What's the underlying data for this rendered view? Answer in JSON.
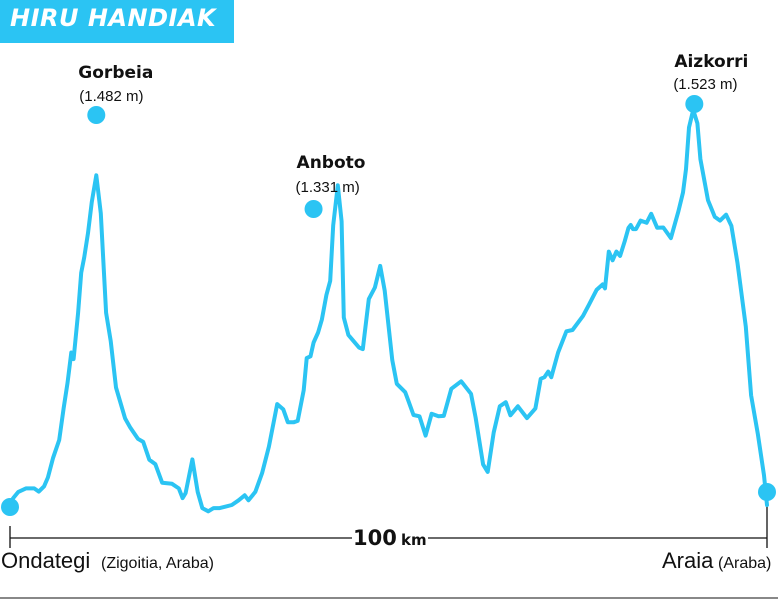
{
  "title": "HIRU HANDIAK",
  "colors": {
    "accent": "#2bc4f3",
    "text": "#111111",
    "axis": "#111111"
  },
  "chart_data": {
    "type": "line",
    "title": "HIRU HANDIAK",
    "total_distance": "100",
    "distance_unit": "km",
    "start": {
      "name": "Ondategi",
      "region": "(Zigoitia, Araba)"
    },
    "end": {
      "name": "Araia",
      "region": "(Araba)"
    },
    "peaks": [
      {
        "name": "Gorbeia",
        "elevation": "(1.482 m)",
        "km": 11.4,
        "m": 1482
      },
      {
        "name": "Anboto",
        "elevation": "(1.331 m)",
        "km": 40.1,
        "m": 1331
      },
      {
        "name": "Aizkorri",
        "elevation": "(1.523 m)",
        "km": 90.4,
        "m": 1523
      }
    ],
    "profile": [
      [
        0,
        0
      ],
      [
        0.4,
        21
      ],
      [
        1.1,
        42
      ],
      [
        2.1,
        53
      ],
      [
        3.2,
        53
      ],
      [
        3.8,
        43
      ],
      [
        4.5,
        60
      ],
      [
        5,
        88
      ],
      [
        5.7,
        151
      ],
      [
        6.5,
        208
      ],
      [
        7.1,
        311
      ],
      [
        7.6,
        390
      ],
      [
        8.1,
        488
      ],
      [
        8.4,
        467
      ],
      [
        9,
        615
      ],
      [
        9.4,
        743
      ],
      [
        9.8,
        792
      ],
      [
        10.3,
        870
      ],
      [
        10.8,
        970
      ],
      [
        11.4,
        1055
      ],
      [
        12,
        933
      ],
      [
        12.7,
        615
      ],
      [
        13.3,
        525
      ],
      [
        14,
        376
      ],
      [
        15.2,
        277
      ],
      [
        15.9,
        247
      ],
      [
        16.9,
        212
      ],
      [
        17.6,
        202
      ],
      [
        18.4,
        145
      ],
      [
        19.2,
        131
      ],
      [
        20.1,
        71
      ],
      [
        21.4,
        68
      ],
      [
        22.3,
        53
      ],
      [
        22.8,
        22
      ],
      [
        23.2,
        38
      ],
      [
        24.1,
        146
      ],
      [
        24.8,
        42
      ],
      [
        25.4,
        -10
      ],
      [
        26.2,
        -20
      ],
      [
        26.9,
        -10
      ],
      [
        27.7,
        -10
      ],
      [
        28.5,
        -5
      ],
      [
        29.3,
        0
      ],
      [
        30.2,
        15
      ],
      [
        31,
        31
      ],
      [
        31.5,
        15
      ],
      [
        32.4,
        42
      ],
      [
        33.3,
        102
      ],
      [
        34.2,
        187
      ],
      [
        35.3,
        323
      ],
      [
        36.1,
        306
      ],
      [
        36.7,
        265
      ],
      [
        37.5,
        265
      ],
      [
        38,
        269
      ],
      [
        38.8,
        367
      ],
      [
        39.2,
        470
      ],
      [
        39.7,
        476
      ],
      [
        40.1,
        520
      ],
      [
        40.7,
        552
      ],
      [
        41.2,
        594
      ],
      [
        41.8,
        672
      ],
      [
        42.3,
        717
      ],
      [
        42.7,
        895
      ],
      [
        43.3,
        1023
      ],
      [
        43.8,
        908
      ],
      [
        44.1,
        600
      ],
      [
        44.7,
        544
      ],
      [
        45.3,
        527
      ],
      [
        46.1,
        504
      ],
      [
        46.6,
        499
      ],
      [
        47.4,
        659
      ],
      [
        48.2,
        696
      ],
      [
        48.9,
        765
      ],
      [
        49.5,
        686
      ],
      [
        50.5,
        463
      ],
      [
        51.1,
        388
      ],
      [
        52.2,
        361
      ],
      [
        52.6,
        335
      ],
      [
        53.3,
        288
      ],
      [
        54.1,
        284
      ],
      [
        54.9,
        222
      ],
      [
        55.7,
        292
      ],
      [
        56.6,
        284
      ],
      [
        57.3,
        285
      ],
      [
        58.3,
        372
      ],
      [
        59.6,
        396
      ],
      [
        60.9,
        356
      ],
      [
        61.5,
        280
      ],
      [
        62.5,
        130
      ],
      [
        63.1,
        106
      ],
      [
        63.9,
        232
      ],
      [
        64.7,
        316
      ],
      [
        65.5,
        329
      ],
      [
        66.1,
        287
      ],
      [
        67.1,
        316
      ],
      [
        68.3,
        278
      ],
      [
        69.4,
        309
      ],
      [
        70.1,
        404
      ],
      [
        70.6,
        409
      ],
      [
        71.1,
        427
      ],
      [
        71.5,
        409
      ],
      [
        72.4,
        488
      ],
      [
        73.5,
        556
      ],
      [
        74.3,
        560
      ],
      [
        75.7,
        605
      ],
      [
        76.5,
        642
      ],
      [
        77.5,
        689
      ],
      [
        78.3,
        706
      ],
      [
        78.6,
        693
      ],
      [
        79.1,
        811
      ],
      [
        79.6,
        783
      ],
      [
        80.1,
        811
      ],
      [
        80.6,
        797
      ],
      [
        81.2,
        844
      ],
      [
        81.7,
        887
      ],
      [
        82,
        896
      ],
      [
        82.3,
        883
      ],
      [
        82.7,
        883
      ],
      [
        83.3,
        910
      ],
      [
        84.1,
        903
      ],
      [
        84.7,
        932
      ],
      [
        85.5,
        887
      ],
      [
        86.3,
        888
      ],
      [
        87.3,
        854
      ],
      [
        88.3,
        940
      ],
      [
        88.9,
        1000
      ],
      [
        89.3,
        1075
      ],
      [
        89.7,
        1208
      ],
      [
        90.2,
        1259
      ],
      [
        90.4,
        1253
      ],
      [
        90.8,
        1221
      ],
      [
        91.2,
        1107
      ],
      [
        92.2,
        975
      ],
      [
        93.1,
        922
      ],
      [
        93.8,
        910
      ],
      [
        94.6,
        929
      ],
      [
        95.3,
        893
      ],
      [
        96.1,
        774
      ],
      [
        97.2,
        571
      ],
      [
        97.9,
        351
      ],
      [
        98.8,
        226
      ],
      [
        99.6,
        95
      ],
      [
        100,
        0
      ]
    ],
    "xlim": [
      0,
      100
    ],
    "legend": "none",
    "grid": false
  }
}
